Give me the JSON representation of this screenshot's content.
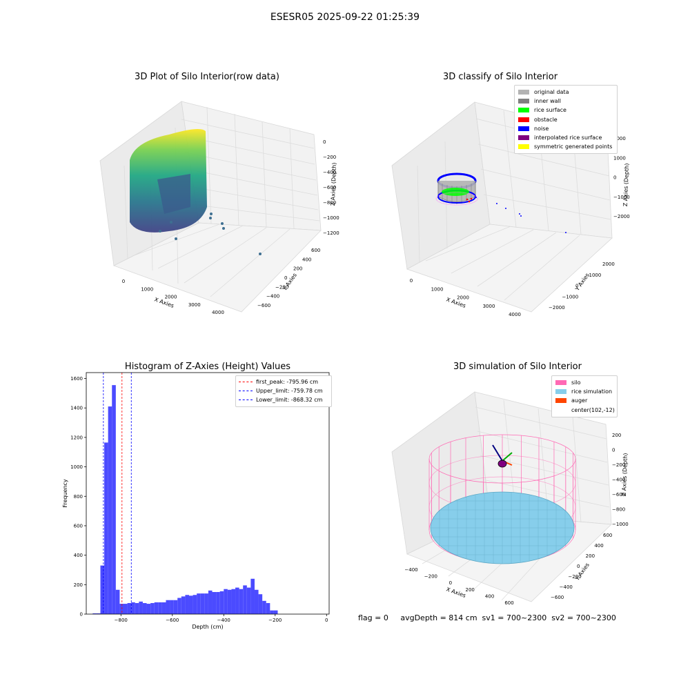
{
  "suptitle": "ESESR05 2025-09-22 01:25:39",
  "footer": "flag = 0     avgDepth = 814 cm  sv1 = 700~2300  sv2 = 700~2300",
  "chart_data": [
    {
      "type": "scatter",
      "title": "3D Plot of Silo Interior(row data)",
      "xlabel": "X Axies",
      "ylabel": "Y Axies",
      "zlabel": "Z Axies (Depth)",
      "x_ticks": [
        "0",
        "1000",
        "2000",
        "3000",
        "4000"
      ],
      "y_ticks": [
        "600",
        "400",
        "200",
        "0",
        "−200",
        "−400",
        "−600"
      ],
      "z_ticks": [
        "0",
        "−200",
        "−400",
        "−600",
        "−800",
        "−1000",
        "−1200"
      ],
      "colormap": [
        "#fde725",
        "#7ad151",
        "#22a884",
        "#2a788e",
        "#414487",
        "#440154"
      ]
    },
    {
      "type": "scatter",
      "title": "3D classify of Silo Interior",
      "xlabel": "X Axies",
      "ylabel": "Y Axies",
      "zlabel": "Z Axies (Depth)",
      "x_ticks": [
        "0",
        "1000",
        "2000",
        "3000",
        "4000"
      ],
      "y_ticks": [
        "2000",
        "1000",
        "0",
        "−1000",
        "−2000"
      ],
      "z_ticks": [
        "2000",
        "1000",
        "0",
        "−1000",
        "−2000"
      ],
      "legend": [
        {
          "label": "original data",
          "color": "#b3b3b3"
        },
        {
          "label": "inner wall",
          "color": "#808080"
        },
        {
          "label": "rice surface",
          "color": "#00ff00"
        },
        {
          "label": "obstacle",
          "color": "#ff0000"
        },
        {
          "label": "noise",
          "color": "#0000ff"
        },
        {
          "label": "interpolated rice surface",
          "color": "#800080"
        },
        {
          "label": "symmetric generated points",
          "color": "#ffff00"
        }
      ]
    },
    {
      "type": "bar",
      "title": "Histogram of Z-Axies (Height) Values",
      "xlabel": "Depth (cm)",
      "ylabel": "Frequency",
      "bar_color": "#4b4bff",
      "xlim": [
        -935,
        10
      ],
      "ylim": [
        0,
        1640
      ],
      "x_ticks": [
        -800,
        -600,
        -400,
        -200,
        0
      ],
      "x_tick_labels": [
        "−800",
        "−600",
        "−400",
        "−200",
        "0"
      ],
      "y_ticks": [
        0,
        200,
        400,
        600,
        800,
        1000,
        1200,
        1400,
        1600
      ],
      "bin_start": -910,
      "bin_width": 15,
      "values": [
        5,
        5,
        330,
        1165,
        1410,
        1555,
        165,
        70,
        70,
        75,
        80,
        75,
        85,
        75,
        70,
        75,
        80,
        80,
        80,
        95,
        95,
        95,
        110,
        120,
        130,
        125,
        130,
        140,
        140,
        140,
        160,
        150,
        150,
        155,
        170,
        165,
        170,
        180,
        170,
        195,
        180,
        240,
        165,
        135,
        90,
        75,
        25,
        25
      ],
      "vlines": [
        {
          "label": "first_peak: -795.96 cm",
          "x": -795.96,
          "color": "#ff0000"
        },
        {
          "label": "Upper_limit: -759.78 cm",
          "x": -759.78,
          "color": "#0000ff"
        },
        {
          "label": "Lower_limit: -868.32 cm",
          "x": -868.32,
          "color": "#0000ff"
        }
      ]
    },
    {
      "type": "scatter",
      "title": "3D simulation of Silo Interior",
      "xlabel": "X Axies",
      "ylabel": "Y Axies",
      "zlabel": "Z Axies (Depth)",
      "x_ticks": [
        "−400",
        "−200",
        "0",
        "200",
        "400",
        "600"
      ],
      "y_ticks": [
        "600",
        "400",
        "200",
        "0",
        "−200",
        "−400",
        "−600"
      ],
      "z_ticks": [
        "200",
        "0",
        "−200",
        "−400",
        "−600",
        "−800",
        "−1000"
      ],
      "legend": [
        {
          "label": "silo",
          "color": "#ff69b4"
        },
        {
          "label": "rice simulation",
          "color": "#87ceeb"
        },
        {
          "label": "auger",
          "color": "#ff4500"
        },
        {
          "label": "center(102,-12)",
          "color": ""
        }
      ]
    }
  ]
}
